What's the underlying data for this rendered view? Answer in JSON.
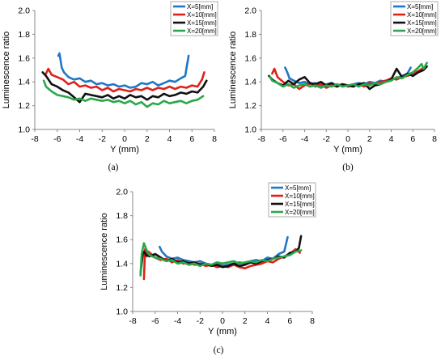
{
  "chart_data": [
    {
      "type": "line",
      "panel_label": "(a)",
      "xlabel": "Y (mm)",
      "ylabel": "Luminescence ratio",
      "xlim": [
        -8,
        8
      ],
      "ylim": [
        1.0,
        2.0
      ],
      "xticks": [
        "-8",
        "-6",
        "-4",
        "-2",
        "0",
        "2",
        "4",
        "6",
        "8"
      ],
      "yticks": [
        "1.0",
        "1.2",
        "1.4",
        "1.6",
        "1.8",
        "2.0"
      ],
      "grid": false,
      "legend_position": "top-right",
      "series": [
        {
          "name": "X=5[mm]",
          "color": "#1f77c6",
          "x": [
            -5.9,
            -5.8,
            -5.6,
            -5.4,
            -5.0,
            -4.5,
            -4.0,
            -3.5,
            -3.0,
            -2.5,
            -2.0,
            -1.5,
            -1.0,
            -0.5,
            0.0,
            0.5,
            1.0,
            1.5,
            2.0,
            2.5,
            3.0,
            3.5,
            4.0,
            4.5,
            5.0,
            5.4,
            5.7
          ],
          "y": [
            1.62,
            1.64,
            1.52,
            1.48,
            1.44,
            1.42,
            1.43,
            1.4,
            1.41,
            1.38,
            1.39,
            1.37,
            1.38,
            1.36,
            1.37,
            1.35,
            1.36,
            1.39,
            1.38,
            1.4,
            1.37,
            1.39,
            1.41,
            1.4,
            1.43,
            1.45,
            1.62
          ]
        },
        {
          "name": "X=10[mm]",
          "color": "#e0211b",
          "x": [
            -7.0,
            -6.8,
            -6.5,
            -6.0,
            -5.5,
            -5.0,
            -4.5,
            -4.0,
            -3.5,
            -3.0,
            -2.5,
            -2.0,
            -1.5,
            -1.0,
            -0.5,
            0.0,
            0.5,
            1.0,
            1.5,
            2.0,
            2.5,
            3.0,
            3.5,
            4.0,
            4.5,
            5.0,
            5.5,
            6.0,
            6.5,
            6.9,
            7.1
          ],
          "y": [
            1.47,
            1.51,
            1.46,
            1.44,
            1.42,
            1.38,
            1.4,
            1.36,
            1.37,
            1.35,
            1.36,
            1.33,
            1.35,
            1.32,
            1.34,
            1.33,
            1.32,
            1.34,
            1.33,
            1.35,
            1.33,
            1.35,
            1.34,
            1.36,
            1.34,
            1.36,
            1.35,
            1.37,
            1.36,
            1.42,
            1.48
          ]
        },
        {
          "name": "X=15[mm]",
          "color": "#111111",
          "x": [
            -7.3,
            -7.0,
            -6.5,
            -6.0,
            -5.5,
            -5.0,
            -4.5,
            -4.0,
            -3.5,
            -3.0,
            -2.5,
            -2.0,
            -1.5,
            -1.0,
            -0.5,
            0.0,
            0.5,
            1.0,
            1.5,
            2.0,
            2.5,
            3.0,
            3.5,
            4.0,
            4.5,
            5.0,
            5.5,
            6.0,
            6.5,
            7.0,
            7.3
          ],
          "y": [
            1.48,
            1.45,
            1.38,
            1.36,
            1.33,
            1.31,
            1.27,
            1.23,
            1.3,
            1.29,
            1.28,
            1.27,
            1.29,
            1.26,
            1.28,
            1.26,
            1.29,
            1.27,
            1.28,
            1.25,
            1.28,
            1.27,
            1.3,
            1.28,
            1.29,
            1.31,
            1.3,
            1.32,
            1.31,
            1.36,
            1.41
          ]
        },
        {
          "name": "X=20[mm]",
          "color": "#2aa84a",
          "x": [
            -7.2,
            -7.0,
            -6.5,
            -6.0,
            -5.5,
            -5.0,
            -4.5,
            -4.0,
            -3.5,
            -3.0,
            -2.5,
            -2.0,
            -1.5,
            -1.0,
            -0.5,
            0.0,
            0.5,
            1.0,
            1.5,
            2.0,
            2.5,
            3.0,
            3.5,
            4.0,
            4.5,
            5.0,
            5.5,
            6.0,
            6.5,
            7.0
          ],
          "y": [
            1.41,
            1.36,
            1.32,
            1.29,
            1.28,
            1.27,
            1.25,
            1.26,
            1.24,
            1.26,
            1.25,
            1.24,
            1.25,
            1.23,
            1.24,
            1.22,
            1.24,
            1.21,
            1.23,
            1.19,
            1.22,
            1.21,
            1.24,
            1.22,
            1.23,
            1.24,
            1.22,
            1.24,
            1.25,
            1.28
          ]
        }
      ]
    },
    {
      "type": "line",
      "panel_label": "(b)",
      "xlabel": "Y (mm)",
      "ylabel": "Luminescence ratio",
      "xlim": [
        -8,
        8
      ],
      "ylim": [
        1.0,
        2.0
      ],
      "xticks": [
        "-8",
        "-6",
        "-4",
        "-2",
        "0",
        "2",
        "4",
        "6",
        "8"
      ],
      "yticks": [
        "1.0",
        "1.2",
        "1.4",
        "1.6",
        "1.8",
        "2.0"
      ],
      "grid": false,
      "legend_position": "top-right",
      "series": [
        {
          "name": "X=5[mm]",
          "color": "#1f77c6",
          "x": [
            -5.8,
            -5.6,
            -5.4,
            -5.0,
            -4.5,
            -4.0,
            -3.5,
            -3.0,
            -2.5,
            -2.0,
            -1.5,
            -1.0,
            -0.5,
            0.0,
            0.5,
            1.0,
            1.5,
            2.0,
            2.5,
            3.0,
            3.5,
            4.0,
            4.5,
            5.0,
            5.5,
            5.8
          ],
          "y": [
            1.52,
            1.48,
            1.43,
            1.41,
            1.39,
            1.4,
            1.38,
            1.39,
            1.37,
            1.38,
            1.39,
            1.37,
            1.38,
            1.37,
            1.38,
            1.39,
            1.38,
            1.4,
            1.39,
            1.41,
            1.4,
            1.42,
            1.43,
            1.45,
            1.47,
            1.52
          ]
        },
        {
          "name": "X=10[mm]",
          "color": "#e0211b",
          "x": [
            -7.0,
            -6.8,
            -6.5,
            -6.0,
            -5.5,
            -5.0,
            -4.5,
            -4.0,
            -3.5,
            -3.0,
            -2.5,
            -2.0,
            -1.5,
            -1.0,
            -0.5,
            0.0,
            0.5,
            1.0,
            1.5,
            2.0,
            2.5,
            3.0,
            3.5,
            4.0,
            4.5,
            5.0,
            5.5,
            6.0,
            6.5,
            7.0
          ],
          "y": [
            1.47,
            1.51,
            1.44,
            1.4,
            1.37,
            1.38,
            1.34,
            1.37,
            1.39,
            1.36,
            1.38,
            1.35,
            1.37,
            1.36,
            1.38,
            1.36,
            1.37,
            1.38,
            1.36,
            1.39,
            1.38,
            1.4,
            1.41,
            1.43,
            1.42,
            1.44,
            1.45,
            1.47,
            1.49,
            1.52
          ]
        },
        {
          "name": "X=15[mm]",
          "color": "#111111",
          "x": [
            -7.3,
            -7.0,
            -6.5,
            -6.0,
            -5.5,
            -5.0,
            -4.5,
            -4.0,
            -3.5,
            -3.0,
            -2.5,
            -2.0,
            -1.5,
            -1.0,
            -0.5,
            0.0,
            0.5,
            1.0,
            1.5,
            2.0,
            2.5,
            3.0,
            3.5,
            4.0,
            4.5,
            5.0,
            5.5,
            6.0,
            6.5,
            7.0,
            7.3
          ],
          "y": [
            1.45,
            1.42,
            1.39,
            1.37,
            1.41,
            1.38,
            1.42,
            1.44,
            1.39,
            1.38,
            1.4,
            1.37,
            1.39,
            1.36,
            1.38,
            1.37,
            1.36,
            1.38,
            1.39,
            1.34,
            1.37,
            1.38,
            1.4,
            1.42,
            1.51,
            1.44,
            1.47,
            1.45,
            1.48,
            1.5,
            1.53
          ]
        },
        {
          "name": "X=20[mm]",
          "color": "#2aa84a",
          "x": [
            -7.2,
            -7.0,
            -6.5,
            -6.0,
            -5.5,
            -5.0,
            -4.5,
            -4.0,
            -3.5,
            -3.0,
            -2.5,
            -2.0,
            -1.5,
            -1.0,
            -0.5,
            0.0,
            0.5,
            1.0,
            1.5,
            2.0,
            2.5,
            3.0,
            3.5,
            4.0,
            4.5,
            5.0,
            5.5,
            6.0,
            6.5,
            6.8,
            7.0,
            7.3
          ],
          "y": [
            1.44,
            1.41,
            1.39,
            1.36,
            1.38,
            1.35,
            1.37,
            1.38,
            1.36,
            1.37,
            1.35,
            1.37,
            1.36,
            1.38,
            1.36,
            1.37,
            1.38,
            1.36,
            1.38,
            1.37,
            1.39,
            1.38,
            1.4,
            1.41,
            1.44,
            1.43,
            1.46,
            1.48,
            1.52,
            1.55,
            1.51,
            1.56
          ]
        }
      ]
    },
    {
      "type": "line",
      "panel_label": "(c)",
      "xlabel": "Y (mm)",
      "ylabel": "Luminescence ratio",
      "xlim": [
        -8,
        8
      ],
      "ylim": [
        1.0,
        2.0
      ],
      "xticks": [
        "-8",
        "-6",
        "-4",
        "-2",
        "0",
        "2",
        "4",
        "6",
        "8"
      ],
      "yticks": [
        "1.0",
        "1.2",
        "1.4",
        "1.6",
        "1.8",
        "2.0"
      ],
      "grid": false,
      "legend_position": "top-right",
      "series": [
        {
          "name": "X=5[mm]",
          "color": "#1f77c6",
          "x": [
            -5.6,
            -5.4,
            -5.0,
            -4.5,
            -4.0,
            -3.5,
            -3.0,
            -2.5,
            -2.0,
            -1.5,
            -1.0,
            -0.5,
            0.0,
            0.5,
            1.0,
            1.5,
            2.0,
            2.5,
            3.0,
            3.5,
            4.0,
            4.5,
            5.0,
            5.5,
            5.8
          ],
          "y": [
            1.54,
            1.5,
            1.46,
            1.44,
            1.45,
            1.43,
            1.42,
            1.41,
            1.42,
            1.4,
            1.39,
            1.4,
            1.38,
            1.39,
            1.4,
            1.41,
            1.4,
            1.42,
            1.43,
            1.42,
            1.45,
            1.44,
            1.48,
            1.5,
            1.62
          ]
        },
        {
          "name": "X=10[mm]",
          "color": "#e0211b",
          "x": [
            -7.0,
            -6.9,
            -6.8,
            -6.6,
            -6.0,
            -5.5,
            -5.0,
            -4.5,
            -4.0,
            -3.5,
            -3.0,
            -2.5,
            -2.0,
            -1.5,
            -1.0,
            -0.5,
            0.0,
            0.5,
            1.0,
            1.5,
            2.0,
            2.5,
            3.0,
            3.5,
            4.0,
            4.5,
            5.0,
            5.5,
            6.0,
            6.5,
            6.9
          ],
          "y": [
            1.27,
            1.52,
            1.46,
            1.5,
            1.45,
            1.43,
            1.44,
            1.41,
            1.43,
            1.4,
            1.41,
            1.39,
            1.4,
            1.38,
            1.39,
            1.37,
            1.38,
            1.37,
            1.39,
            1.37,
            1.36,
            1.38,
            1.39,
            1.4,
            1.42,
            1.41,
            1.44,
            1.46,
            1.48,
            1.52,
            1.49
          ]
        },
        {
          "name": "X=15[mm]",
          "color": "#111111",
          "x": [
            -7.3,
            -7.1,
            -7.0,
            -6.8,
            -6.5,
            -6.0,
            -5.5,
            -5.0,
            -4.5,
            -4.0,
            -3.5,
            -3.0,
            -2.5,
            -2.0,
            -1.5,
            -1.0,
            -0.5,
            0.0,
            0.5,
            1.0,
            1.5,
            2.0,
            2.5,
            3.0,
            3.5,
            4.0,
            4.5,
            5.0,
            5.5,
            6.0,
            6.5,
            6.8,
            7.0
          ],
          "y": [
            1.32,
            1.48,
            1.5,
            1.47,
            1.46,
            1.48,
            1.45,
            1.42,
            1.44,
            1.41,
            1.42,
            1.4,
            1.41,
            1.39,
            1.4,
            1.38,
            1.39,
            1.37,
            1.38,
            1.4,
            1.38,
            1.39,
            1.41,
            1.4,
            1.42,
            1.43,
            1.44,
            1.46,
            1.45,
            1.49,
            1.5,
            1.53,
            1.63
          ]
        },
        {
          "name": "X=20[mm]",
          "color": "#2aa84a",
          "x": [
            -7.3,
            -7.2,
            -7.0,
            -6.8,
            -6.5,
            -6.0,
            -5.5,
            -5.0,
            -4.5,
            -4.0,
            -3.5,
            -3.0,
            -2.5,
            -2.0,
            -1.5,
            -1.0,
            -0.5,
            0.0,
            0.5,
            1.0,
            1.5,
            2.0,
            2.5,
            3.0,
            3.5,
            4.0,
            4.5,
            5.0,
            5.5,
            6.0,
            6.5,
            7.0
          ],
          "y": [
            1.3,
            1.48,
            1.57,
            1.52,
            1.47,
            1.45,
            1.44,
            1.42,
            1.43,
            1.4,
            1.41,
            1.39,
            1.4,
            1.38,
            1.4,
            1.39,
            1.41,
            1.4,
            1.41,
            1.42,
            1.4,
            1.41,
            1.42,
            1.41,
            1.43,
            1.42,
            1.44,
            1.45,
            1.46,
            1.47,
            1.5,
            1.51
          ]
        }
      ]
    }
  ]
}
